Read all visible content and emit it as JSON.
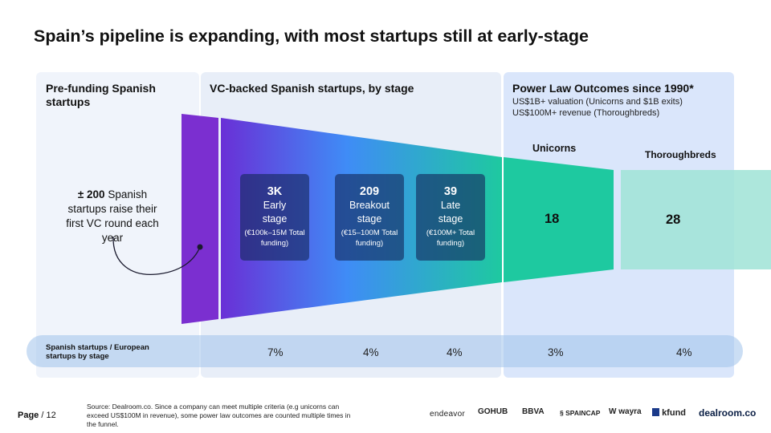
{
  "title": "Spain’s pipeline is expanding, with most startups still at early-stage",
  "sections": {
    "prefunding": {
      "title": "Pre-funding Spanish startups",
      "count": "± 200",
      "text": "Spanish startups raise their first VC round each year"
    },
    "vc_backed": {
      "title": "VC-backed Spanish startups, by stage"
    },
    "power_law": {
      "title": "Power Law Outcomes since 1990*",
      "line1": "US$1B+ valuation (Unicorns and $1B exits)",
      "line2": "US$100M+ revenue (Thoroughbreds)"
    }
  },
  "stages": [
    {
      "count": "3K",
      "name": "Early stage",
      "funding": "(€100k–15M Total funding)"
    },
    {
      "count": "209",
      "name": "Breakout stage",
      "funding": "(€15–100M Total funding)"
    },
    {
      "count": "39",
      "name": "Late stage",
      "funding": "(€100M+ Total funding)"
    }
  ],
  "outcomes": [
    {
      "label": "Unicorns",
      "value": "18"
    },
    {
      "label": "Thoroughbreds",
      "value": "28"
    }
  ],
  "ratio": {
    "label": "Spanish startups / European startups by stage",
    "values": [
      "7%",
      "4%",
      "4%",
      "3%",
      "4%"
    ]
  },
  "footer": {
    "page_label": "Page",
    "page_number": "/ 12",
    "source": "Source:  Dealroom.co. Since a company can meet multiple criteria (e.g  unicorns can exceed US$100M in revenue), some power law outcomes are counted multiple times in the funnel."
  },
  "logos": [
    "endeavor",
    "GOHUB",
    "BBVA",
    "SPAINCAP",
    "wayra",
    "kfund",
    "dealroom.co"
  ],
  "colors": {
    "purple": "#7b2fd0",
    "blue": "#3f8cf6",
    "teal": "#1ec9a0",
    "light_teal": "#9fe3d6"
  }
}
